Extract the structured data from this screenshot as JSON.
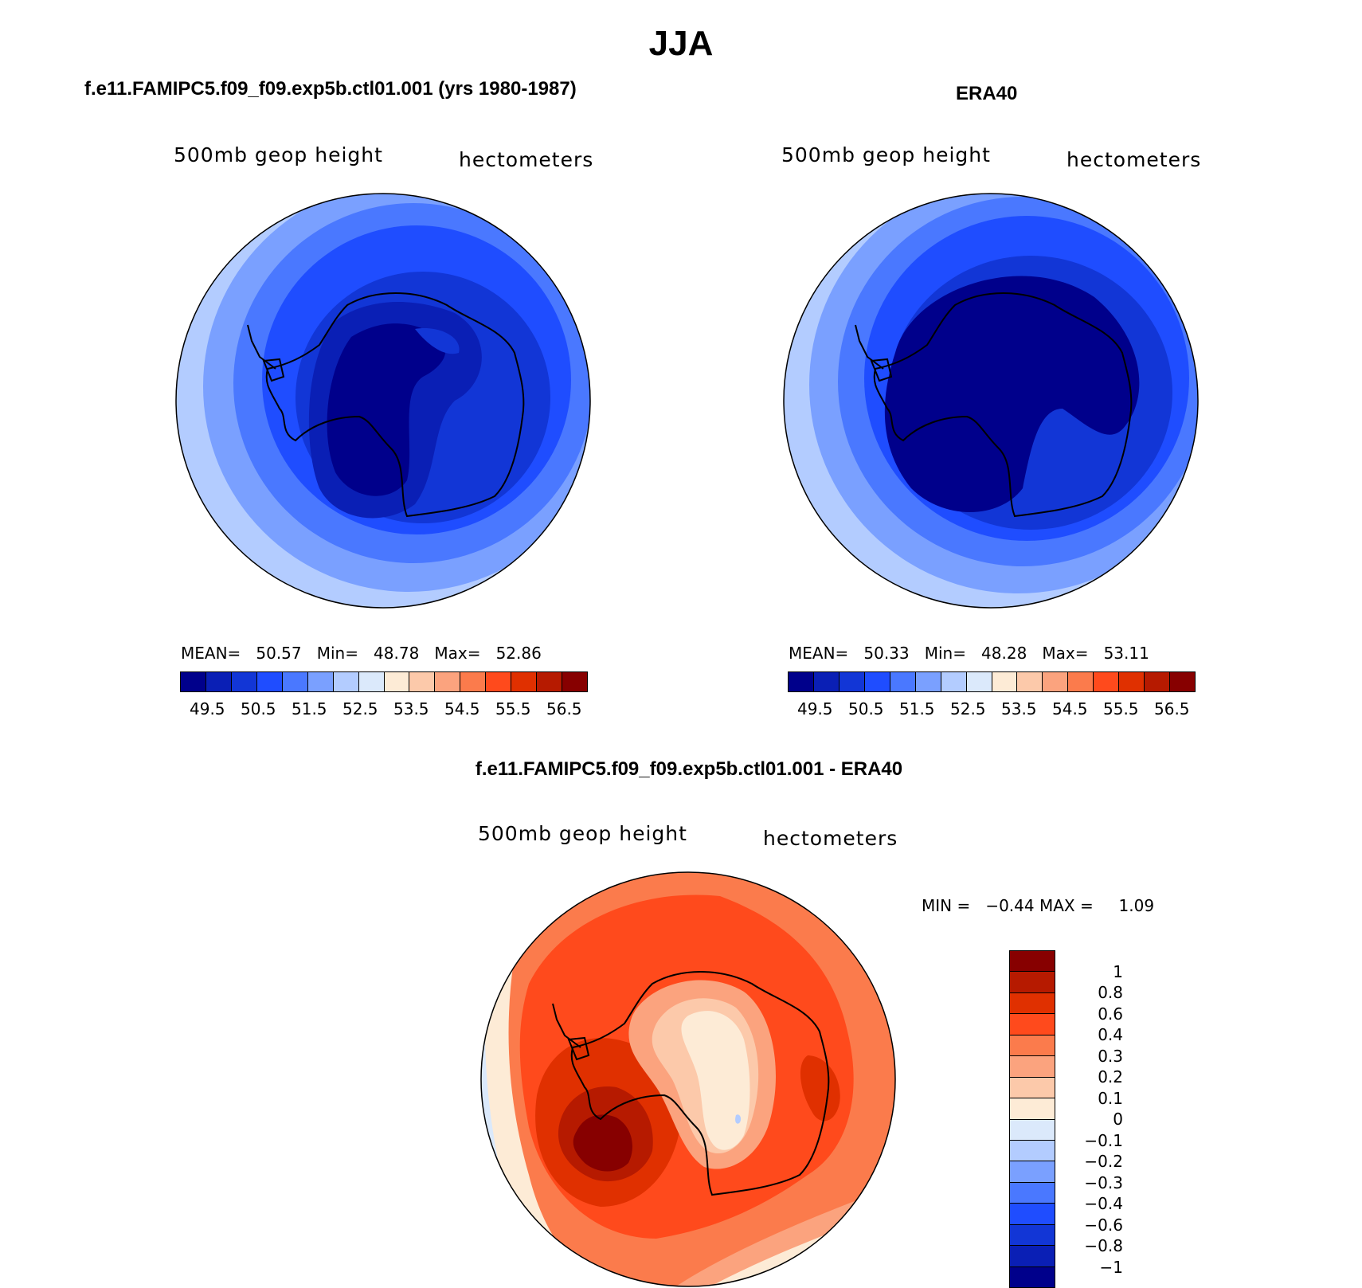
{
  "figure": {
    "title": "JJA"
  },
  "panels": [
    {
      "id": "model",
      "title": "f.e11.FAMIPC5.f09_f09.exp5b.ctl01.001 (yrs 1980-1987)",
      "variable": "500mb geop height",
      "units": "hectometers",
      "stats": {
        "mean_label": "MEAN=",
        "mean": "50.57",
        "min_label": "Min=",
        "min": "48.78",
        "max_label": "Max=",
        "max": "52.86"
      }
    },
    {
      "id": "obs",
      "title": "ERA40",
      "variable": "500mb geop height",
      "units": "hectometers",
      "stats": {
        "mean_label": "MEAN=",
        "mean": "50.33",
        "min_label": "Min=",
        "min": "48.28",
        "max_label": "Max=",
        "max": "53.11"
      }
    },
    {
      "id": "diff",
      "title": "f.e11.FAMIPC5.f09_f09.exp5b.ctl01.001 - ERA40",
      "variable": "500mb geop height",
      "units": "hectometers",
      "stats": {
        "min_label": "MIN =",
        "min": "−0.44",
        "max_label": "MAX =",
        "max": "1.09"
      }
    }
  ],
  "colorbars": {
    "abs_colors": [
      "#00008b",
      "#0a1fb5",
      "#1236d6",
      "#1f4dff",
      "#4a78ff",
      "#7aa0ff",
      "#b3ccff",
      "#dbe9fb",
      "#fdebd6",
      "#fcc9aa",
      "#fba37e",
      "#fb7b4c",
      "#ff4a1c",
      "#e03000",
      "#b61a00",
      "#870000"
    ],
    "abs_ticks": [
      "49.5",
      "50.5",
      "51.5",
      "52.5",
      "53.5",
      "54.5",
      "55.5",
      "56.5"
    ],
    "diff_colors": [
      "#870000",
      "#b61a00",
      "#e03000",
      "#ff4a1c",
      "#fb7b4c",
      "#fba37e",
      "#fcc9aa",
      "#fdebd6",
      "#dbe9fb",
      "#b3ccff",
      "#7aa0ff",
      "#4a78ff",
      "#1f4dff",
      "#1236d6",
      "#0a1fb5",
      "#00008b"
    ],
    "diff_ticks": [
      "1",
      "0.8",
      "0.6",
      "0.4",
      "0.3",
      "0.2",
      "0.1",
      "0",
      "−0.1",
      "−0.2",
      "−0.3",
      "−0.4",
      "−0.6",
      "−0.8",
      "−1"
    ]
  }
}
